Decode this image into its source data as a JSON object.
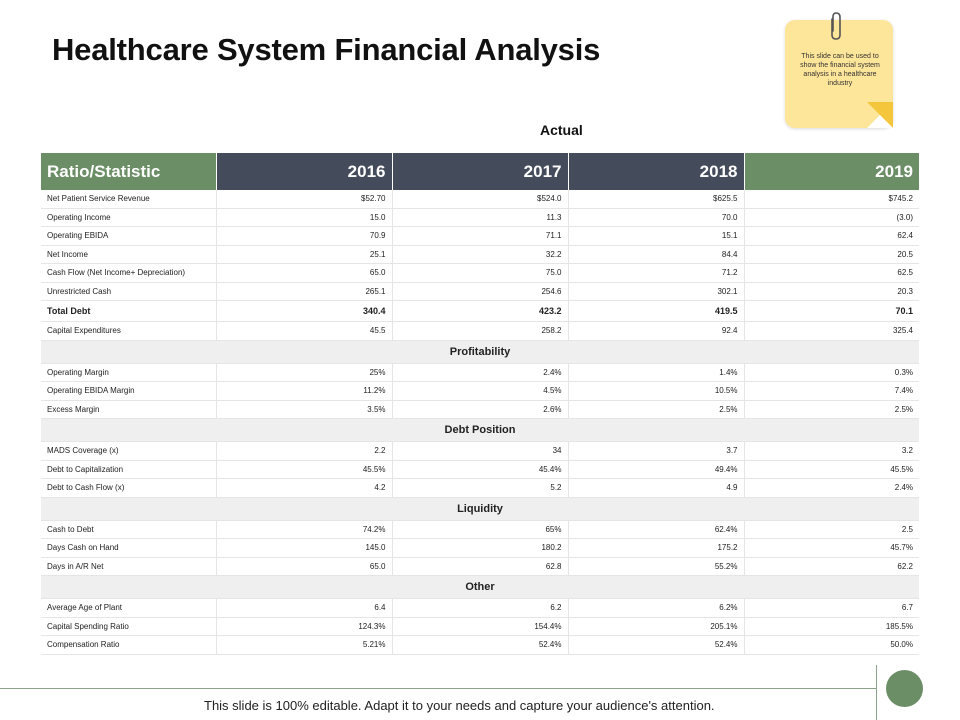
{
  "title": "Healthcare System Financial Analysis",
  "note": "This slide can be used to show the financial system analysis in a healthcare industry",
  "actual_label": "Actual",
  "header": [
    "Ratio/Statistic",
    "2016",
    "2017",
    "2018",
    "2019"
  ],
  "rows": [
    {
      "type": "row",
      "cells": [
        "Net Patient Service Revenue",
        "$52.70",
        "$524.0",
        "$625.5",
        "$745.2"
      ]
    },
    {
      "type": "row",
      "cells": [
        "Operating Income",
        "15.0",
        "11.3",
        "70.0",
        "(3.0)"
      ]
    },
    {
      "type": "row",
      "cells": [
        "Operating EBIDA",
        "70.9",
        "71.1",
        "15.1",
        "62.4"
      ]
    },
    {
      "type": "row",
      "cells": [
        "Net Income",
        "25.1",
        "32.2",
        "84.4",
        "20.5"
      ]
    },
    {
      "type": "row",
      "cells": [
        "Cash Flow (Net Income+ Depreciation)",
        "65.0",
        "75.0",
        "71.2",
        "62.5"
      ]
    },
    {
      "type": "row",
      "cells": [
        "Unrestricted Cash",
        "265.1",
        "254.6",
        "302.1",
        "20.3"
      ]
    },
    {
      "type": "bold",
      "cells": [
        "Total Debt",
        "340.4",
        "423.2",
        "419.5",
        "70.1"
      ]
    },
    {
      "type": "row",
      "cells": [
        "Capital Expenditures",
        "45.5",
        "258.2",
        "92.4",
        "325.4"
      ]
    },
    {
      "type": "section",
      "label": "Profitability"
    },
    {
      "type": "row",
      "cells": [
        "Operating Margin",
        "25%",
        "2.4%",
        "1.4%",
        "0.3%"
      ]
    },
    {
      "type": "row",
      "cells": [
        "Operating EBIDA Margin",
        "11.2%",
        "4.5%",
        "10.5%",
        "7.4%"
      ]
    },
    {
      "type": "row",
      "cells": [
        "Excess Margin",
        "3.5%",
        "2.6%",
        "2.5%",
        "2.5%"
      ]
    },
    {
      "type": "section",
      "label": "Debt Position"
    },
    {
      "type": "row",
      "cells": [
        "MADS Coverage (x)",
        "2.2",
        "34",
        "3.7",
        "3.2"
      ]
    },
    {
      "type": "row",
      "cells": [
        "Debt to Capitalization",
        "45.5%",
        "45.4%",
        "49.4%",
        "45.5%"
      ]
    },
    {
      "type": "row",
      "cells": [
        "Debt to Cash Flow (x)",
        "4.2",
        "5.2",
        "4.9",
        "2.4%"
      ]
    },
    {
      "type": "section",
      "label": "Liquidity"
    },
    {
      "type": "row",
      "cells": [
        "Cash to Debt",
        "74.2%",
        "65%",
        "62.4%",
        "2.5"
      ]
    },
    {
      "type": "row",
      "cells": [
        "Days Cash on Hand",
        "145.0",
        "180.2",
        "175.2",
        "45.7%"
      ]
    },
    {
      "type": "row",
      "cells": [
        "Days in A/R Net",
        "65.0",
        "62.8",
        "55.2%",
        "62.2"
      ]
    },
    {
      "type": "section",
      "label": "Other"
    },
    {
      "type": "row",
      "cells": [
        "Average Age of Plant",
        "6.4",
        "6.2",
        "6.2%",
        "6.7"
      ]
    },
    {
      "type": "row",
      "cells": [
        "Capital Spending Ratio",
        "124.3%",
        "154.4%",
        "205.1%",
        "185.5%"
      ]
    },
    {
      "type": "row",
      "cells": [
        "Compensation Ratio",
        "5.21%",
        "52.4%",
        "52.4%",
        "50.0%"
      ]
    }
  ],
  "footer": "This slide is 100% editable. Adapt it to your needs and capture your audience's attention.",
  "colors": {
    "green": "#6b8e66",
    "dark": "#444b5a",
    "note": "#fde59a"
  }
}
